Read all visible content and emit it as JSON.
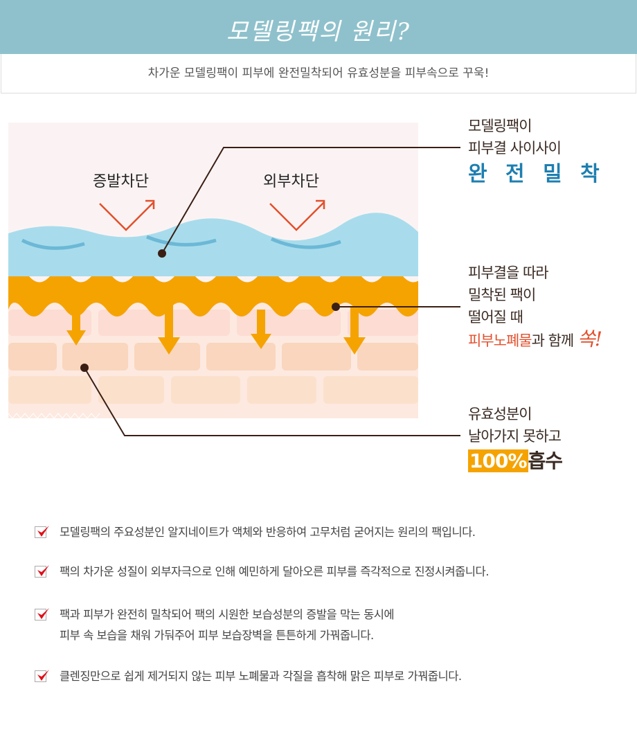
{
  "header": {
    "title": "모델링팩의 원리?"
  },
  "subtitle": "차가운 모델링팩이 피부에 완전밀착되어 유효성분을 피부속으로 꾸욱!",
  "diagram": {
    "labels": [
      "증발차단",
      "외부차단"
    ],
    "callouts": [
      {
        "lines": [
          "모델링팩이",
          "피부결 사이사이"
        ],
        "emphasis": "완 전 밀 착"
      },
      {
        "lines": [
          "피부결을 따라",
          "밀착된 팩이",
          "떨어질 때"
        ],
        "red": "피부노폐물",
        "rest": "과 함께",
        "pop": "쏙!"
      },
      {
        "lines": [
          "유효성분이",
          "날아가지 못하고"
        ],
        "highlight": "100%",
        "rest": "흡수"
      }
    ],
    "colors": {
      "pack": "#a8dcec",
      "orange": "#f5a300",
      "skin": "#f8d9c0",
      "accent": "#1e7fb0",
      "red": "#e2502c"
    }
  },
  "checklist": [
    {
      "lines": [
        "모델링팩의 주요성분인 알지네이트가 액체와 반응하여 고무처럼 굳어지는 원리의 팩입니다."
      ]
    },
    {
      "lines": [
        "팩의 차가운 성질이 외부자극으로 인해 예민하게 달아오른 피부를 즉각적으로 진정시켜줍니다."
      ]
    },
    {
      "lines": [
        "팩과 피부가 완전히 밀착되어 팩의 시원한 보습성분의 증발을 막는 동시에",
        "피부 속 보습을 채워 가둬주어 피부 보습장벽을 튼튼하게 가꿔줍니다."
      ]
    },
    {
      "lines": [
        "클렌징만으로 쉽게 제거되지 않는 피부 노폐물과 각질을 흡착해 맑은 피부로 가꿔줍니다."
      ]
    }
  ]
}
